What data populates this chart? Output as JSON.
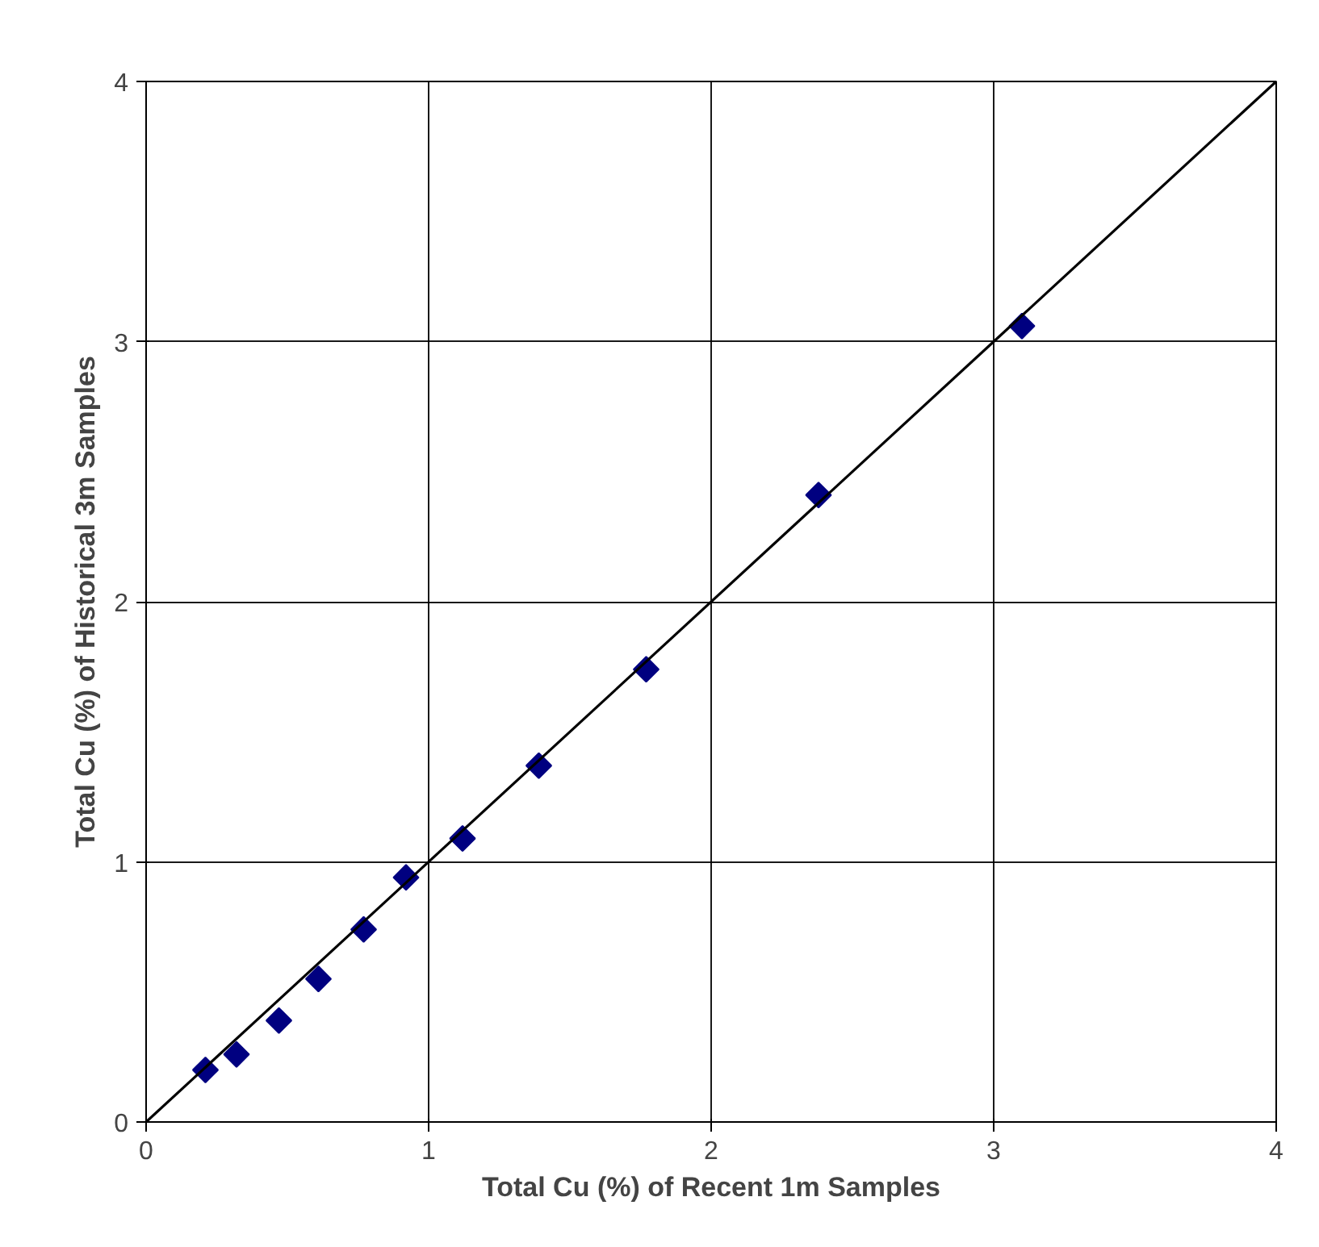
{
  "chart_data": {
    "type": "scatter",
    "xlabel": "Total Cu (%) of Recent 1m Samples",
    "ylabel": "Total Cu (%) of Historical 3m Samples",
    "xlim": [
      0,
      4
    ],
    "ylim": [
      0,
      4
    ],
    "xticks": [
      0,
      1,
      2,
      3,
      4
    ],
    "yticks": [
      0,
      1,
      2,
      3,
      4
    ],
    "grid": true,
    "marker": "diamond",
    "series": [
      {
        "color": "#000080",
        "x": [
          0.21,
          0.32,
          0.47,
          0.61,
          0.77,
          0.92,
          1.12,
          1.39,
          1.77,
          2.38,
          3.1
        ],
        "values": [
          0.2,
          0.26,
          0.39,
          0.55,
          0.74,
          0.94,
          1.09,
          1.37,
          1.74,
          2.41,
          3.06
        ]
      },
      {
        "type": "line",
        "color": "#000000",
        "x": [
          0,
          4
        ],
        "values": [
          0,
          4
        ],
        "marker": "none",
        "line_style": "solid"
      }
    ]
  }
}
